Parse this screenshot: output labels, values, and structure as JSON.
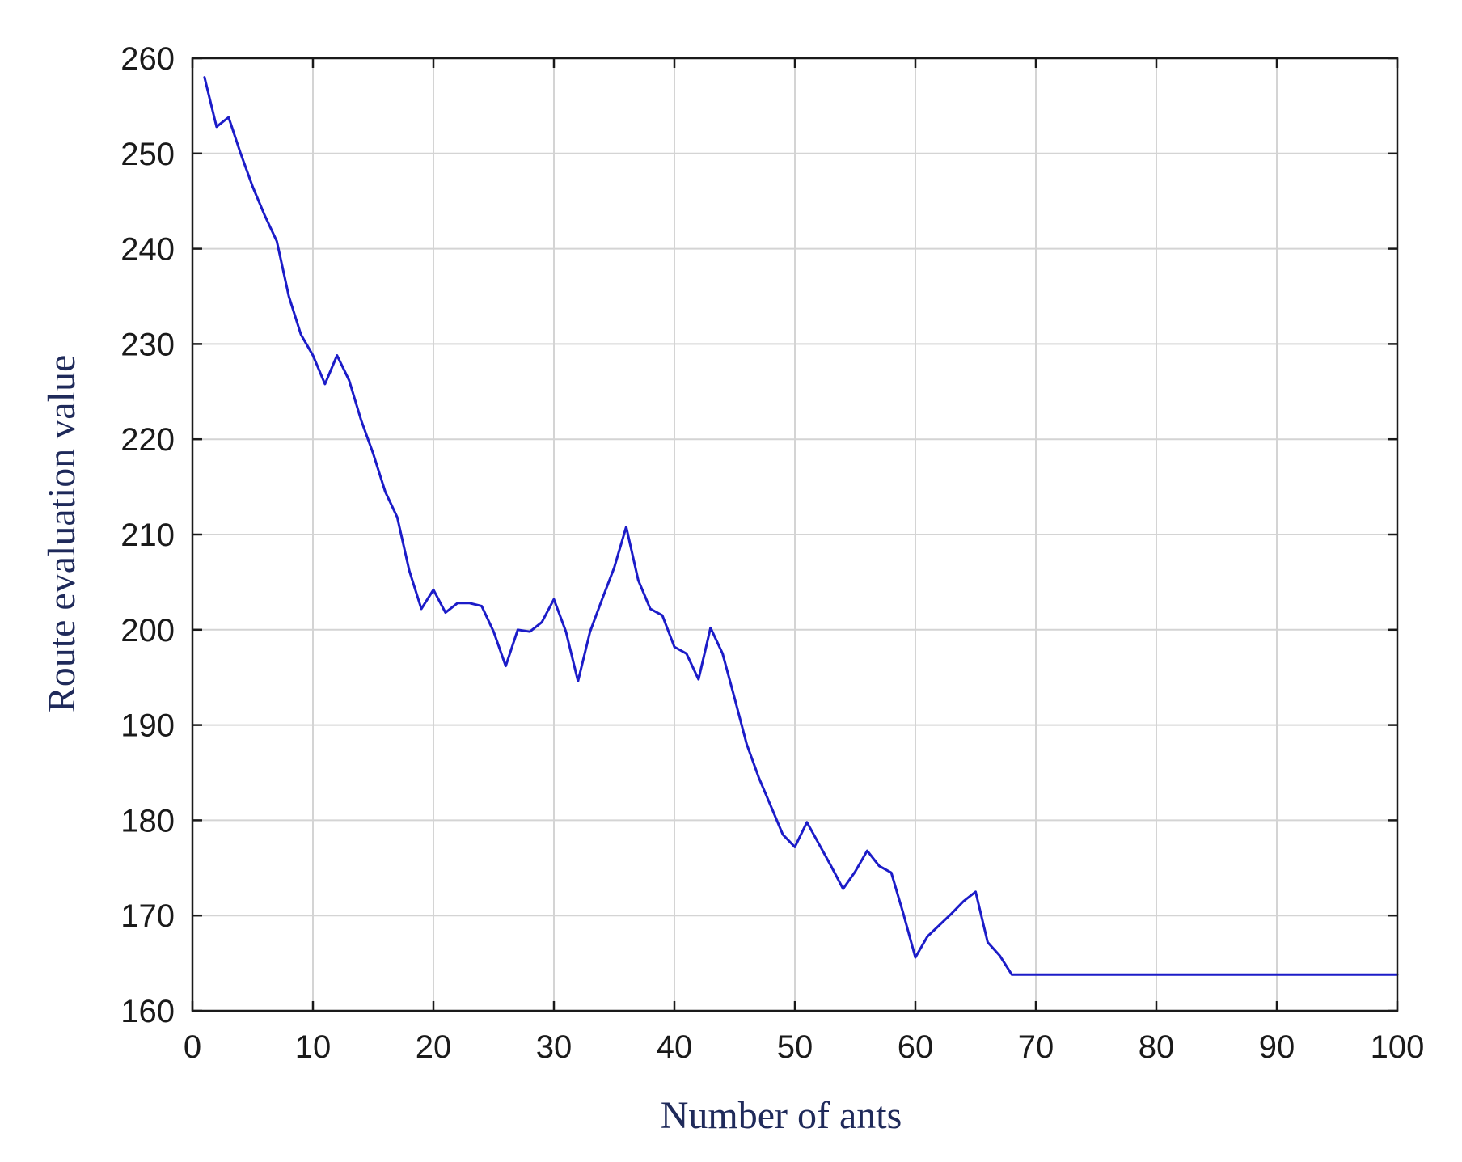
{
  "chart_data": {
    "type": "line",
    "title": "",
    "xlabel": "Number of ants",
    "ylabel": "Route evaluation value",
    "xlim": [
      0,
      100
    ],
    "ylim": [
      160,
      260
    ],
    "xticks": [
      0,
      10,
      20,
      30,
      40,
      50,
      60,
      70,
      80,
      90,
      100
    ],
    "yticks": [
      160,
      170,
      180,
      190,
      200,
      210,
      220,
      230,
      240,
      250,
      260
    ],
    "xtick_labels": [
      "0",
      "10",
      "20",
      "30",
      "40",
      "50",
      "60",
      "70",
      "80",
      "90",
      "100"
    ],
    "ytick_labels": [
      "160",
      "170",
      "180",
      "190",
      "200",
      "210",
      "220",
      "230",
      "240",
      "250",
      "260"
    ],
    "grid": true,
    "legend": "none",
    "series": [
      {
        "color": "#1c1cc8",
        "x": [
          1,
          2,
          3,
          4,
          5,
          6,
          7,
          8,
          9,
          10,
          11,
          12,
          13,
          14,
          15,
          16,
          17,
          18,
          19,
          20,
          21,
          22,
          23,
          24,
          25,
          26,
          27,
          28,
          29,
          30,
          31,
          32,
          33,
          34,
          35,
          36,
          37,
          38,
          39,
          40,
          41,
          42,
          43,
          44,
          45,
          46,
          47,
          48,
          49,
          50,
          51,
          52,
          53,
          54,
          55,
          56,
          57,
          58,
          59,
          60,
          61,
          62,
          63,
          64,
          65,
          66,
          67,
          68,
          69,
          70,
          75,
          80,
          85,
          90,
          95,
          100
        ],
        "y": [
          258,
          252.8,
          253.8,
          250,
          246.5,
          243.5,
          240.8,
          235,
          231,
          228.8,
          225.8,
          228.8,
          226.2,
          222,
          218.5,
          214.5,
          211.8,
          206.2,
          202.2,
          204.2,
          201.8,
          202.8,
          202.8,
          202.5,
          199.8,
          196.2,
          200,
          199.8,
          200.8,
          203.2,
          199.8,
          194.6,
          199.8,
          203.2,
          206.5,
          210.8,
          205.2,
          202.2,
          201.5,
          198.2,
          197.5,
          194.8,
          200.2,
          197.5,
          192.8,
          188,
          184.5,
          181.5,
          178.5,
          177.2,
          179.8,
          177.5,
          175.2,
          172.8,
          174.6,
          176.8,
          175.2,
          174.5,
          170.2,
          165.6,
          167.8,
          169,
          170.2,
          171.5,
          172.5,
          167.2,
          165.8,
          163.8,
          163.8,
          163.8,
          163.8,
          163.8,
          163.8,
          163.8,
          163.8,
          163.8
        ]
      }
    ]
  }
}
